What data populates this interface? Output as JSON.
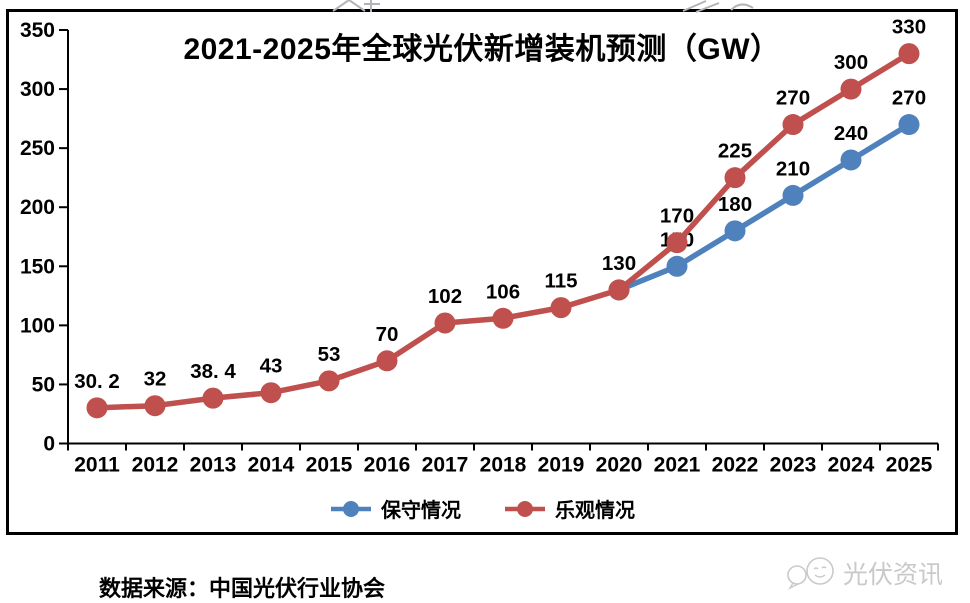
{
  "chart_data": {
    "type": "line",
    "title": "2021-2025年全球光伏新增装机预测（GW）",
    "xlabel": "",
    "ylabel": "",
    "categories": [
      "2011",
      "2012",
      "2013",
      "2014",
      "2015",
      "2016",
      "2017",
      "2018",
      "2019",
      "2020",
      "2021",
      "2022",
      "2023",
      "2024",
      "2025"
    ],
    "y_ticks": [
      "0",
      "50",
      "100",
      "150",
      "200",
      "250",
      "300",
      "350"
    ],
    "ylim": [
      0,
      350
    ],
    "grid": false,
    "legend_position": "bottom",
    "series": [
      {
        "name": "保守情况",
        "color": "#4F81BD",
        "values": [
          null,
          null,
          null,
          null,
          null,
          null,
          null,
          null,
          null,
          130,
          150,
          180,
          210,
          240,
          270
        ],
        "labels": [
          null,
          null,
          null,
          null,
          null,
          null,
          null,
          null,
          null,
          null,
          "150",
          "180",
          "210",
          "240",
          "270"
        ]
      },
      {
        "name": "乐观情况",
        "color": "#C0504D",
        "values": [
          30.2,
          32,
          38.4,
          43,
          53,
          70,
          102,
          106,
          115,
          130,
          170,
          225,
          270,
          300,
          330
        ],
        "labels": [
          "30. 2",
          "32",
          "38. 4",
          "43",
          "53",
          "70",
          "102",
          "106",
          "115",
          "130",
          "170",
          "225",
          "270",
          "300",
          "330"
        ]
      }
    ]
  },
  "footer": {
    "source": "数据来源：中国光伏行业协会",
    "watermark": "光伏资讯"
  },
  "colors": {
    "conservative": "#4F81BD",
    "optimistic": "#C0504D",
    "axis": "#000000",
    "watermark_gray": "#c9c9c9"
  }
}
